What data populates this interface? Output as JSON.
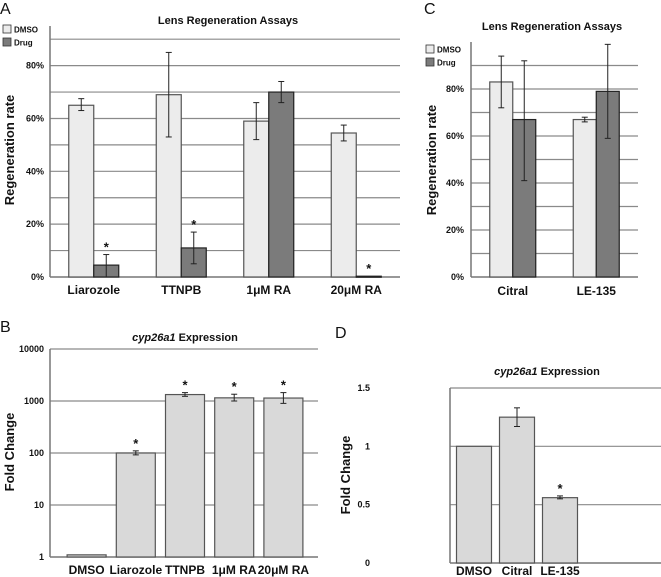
{
  "chart_data": [
    {
      "panel_label": "A",
      "type": "bar",
      "title": "Lens Regeneration Assays",
      "ylabel": "Regeneration rate",
      "xlabel": "",
      "ylim": [
        0,
        95
      ],
      "grid_step": 10,
      "yticks": [
        0,
        20,
        40,
        60,
        80
      ],
      "ytick_labels": [
        "0%",
        "20%",
        "40%",
        "60%",
        "80%"
      ],
      "legend": {
        "placement": "top-left",
        "entries": [
          "DMSO",
          "Drug"
        ]
      },
      "categories": [
        "Liarozole",
        "TTNPB",
        "1μM RA",
        "20μM RA"
      ],
      "series": [
        {
          "name": "DMSO",
          "color": "#ececec",
          "values": [
            65,
            69,
            59,
            54.5
          ],
          "err_low": [
            63,
            53,
            52,
            51.5
          ],
          "err_high": [
            67.5,
            85,
            66,
            57.5
          ]
        },
        {
          "name": "Drug",
          "color": "#7b7b7b",
          "values": [
            4.5,
            11,
            70,
            0.3
          ],
          "err_low": [
            0,
            5,
            66,
            null
          ],
          "err_high": [
            8.5,
            17,
            74,
            null
          ]
        }
      ],
      "significance": [
        {
          "category": 0,
          "series": 1,
          "label": "*"
        },
        {
          "category": 1,
          "series": 1,
          "label": "*"
        },
        {
          "category": 3,
          "series": 1,
          "label": "*"
        }
      ]
    },
    {
      "panel_label": "B",
      "type": "bar",
      "title_italic": "cyp26a1",
      "title": "Expression",
      "ylabel": "Fold Change",
      "xlabel": "",
      "yscale": "log",
      "ylim": [
        1,
        10000
      ],
      "yticks": [
        1,
        10,
        100,
        1000,
        10000
      ],
      "ytick_labels": [
        "1",
        "10",
        "100",
        "1000",
        "10000"
      ],
      "categories": [
        "DMSO",
        "Liarozole",
        "TTNPB",
        "1μM RA",
        "20μM RA"
      ],
      "series": [
        {
          "name": "Fold Change",
          "color": "#d9d9d9",
          "values": [
            1.1,
            100,
            1330,
            1150,
            1140
          ],
          "err_low": [
            null,
            92,
            1230,
            1000,
            900
          ],
          "err_high": [
            null,
            110,
            1450,
            1350,
            1450
          ]
        }
      ],
      "significance": [
        {
          "category": 1,
          "series": 0,
          "label": "*"
        },
        {
          "category": 2,
          "series": 0,
          "label": "*"
        },
        {
          "category": 3,
          "series": 0,
          "label": "*"
        },
        {
          "category": 4,
          "series": 0,
          "label": "*"
        }
      ]
    },
    {
      "panel_label": "C",
      "type": "bar",
      "title": "Lens Regeneration Assays",
      "ylabel": "Regeneration rate",
      "xlabel": "",
      "ylim": [
        0,
        100
      ],
      "grid_step": 10,
      "yticks": [
        0,
        20,
        40,
        60,
        80
      ],
      "ytick_labels": [
        "0%",
        "20%",
        "40%",
        "60%",
        "80%"
      ],
      "legend": {
        "placement": "top-left",
        "entries": [
          "DMSO",
          "Drug"
        ]
      },
      "categories": [
        "Citral",
        "LE-135"
      ],
      "series": [
        {
          "name": "DMSO",
          "color": "#ececec",
          "values": [
            83,
            67
          ],
          "err_low": [
            72,
            66
          ],
          "err_high": [
            94,
            68
          ]
        },
        {
          "name": "Drug",
          "color": "#7b7b7b",
          "values": [
            67,
            79
          ],
          "err_low": [
            41,
            59
          ],
          "err_high": [
            92,
            99
          ]
        }
      ],
      "significance": []
    },
    {
      "panel_label": "D",
      "type": "bar",
      "title_italic": "cyp26a1",
      "title": "Expression",
      "ylabel": "Fold Change",
      "xlabel": "",
      "ylim": [
        0,
        1.5
      ],
      "yticks": [
        0,
        0.5,
        1,
        1.5
      ],
      "ytick_labels": [
        "0",
        "0.5",
        "1",
        "1.5"
      ],
      "categories": [
        "DMSO",
        "Citral",
        "LE-135"
      ],
      "series": [
        {
          "name": "Fold Change",
          "color": "#d9d9d9",
          "values": [
            1.0,
            1.25,
            0.56
          ],
          "err_low": [
            null,
            1.17,
            0.55
          ],
          "err_high": [
            null,
            1.33,
            0.575
          ]
        }
      ],
      "significance": [
        {
          "category": 2,
          "series": 0,
          "label": "*"
        }
      ]
    }
  ]
}
